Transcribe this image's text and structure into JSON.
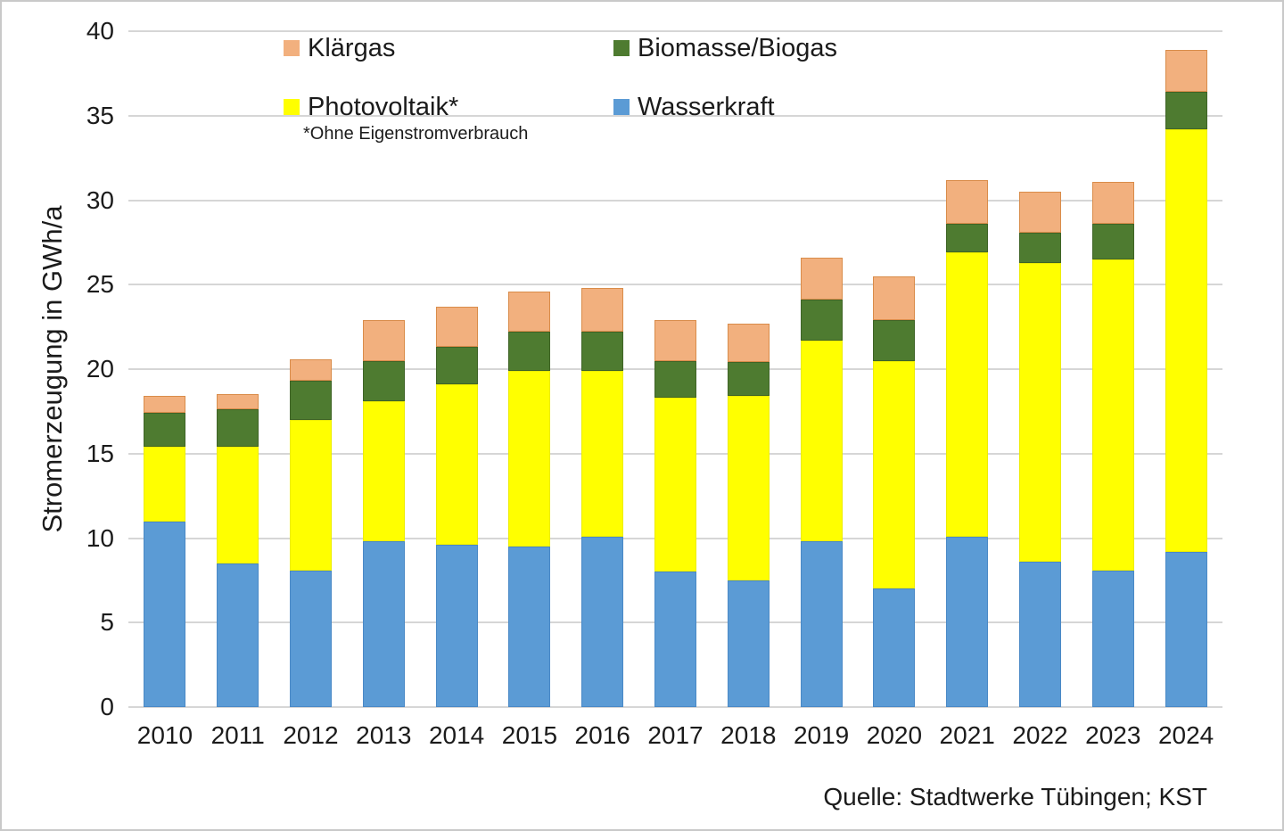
{
  "chart_data": {
    "type": "bar",
    "stacked": true,
    "title": "",
    "categories": [
      "2010",
      "2011",
      "2012",
      "2013",
      "2014",
      "2015",
      "2016",
      "2017",
      "2018",
      "2019",
      "2020",
      "2021",
      "2022",
      "2023",
      "2024"
    ],
    "series": [
      {
        "name": "Wasserkraft",
        "color": "#5B9BD5",
        "border": "#4A89C6",
        "values": [
          11.0,
          8.5,
          8.1,
          9.8,
          9.6,
          9.5,
          10.1,
          8.0,
          7.5,
          9.8,
          7.0,
          10.1,
          8.6,
          8.1,
          9.2
        ]
      },
      {
        "name": "Photovoltaik*",
        "color": "#FFFF00",
        "border": "#EDED00",
        "values": [
          4.4,
          6.9,
          8.9,
          8.3,
          9.5,
          10.4,
          9.8,
          10.3,
          10.9,
          11.9,
          13.5,
          16.8,
          17.7,
          18.4,
          25.0
        ]
      },
      {
        "name": "Biomasse/Biogas",
        "color": "#4E7B30",
        "border": "#3F6426",
        "values": [
          2.0,
          2.2,
          2.3,
          2.4,
          2.2,
          2.3,
          2.3,
          2.2,
          2.0,
          2.4,
          2.4,
          1.7,
          1.8,
          2.1,
          2.2
        ]
      },
      {
        "name": "Klärgas",
        "color": "#F2B07E",
        "border": "#D98C4A",
        "values": [
          1.0,
          0.9,
          1.3,
          2.4,
          2.4,
          2.4,
          2.6,
          2.4,
          2.3,
          2.5,
          2.6,
          2.6,
          2.4,
          2.5,
          2.5
        ]
      }
    ],
    "xlabel": "",
    "ylabel": "Stromerzeugung in GWh/a",
    "ylim": [
      0,
      40
    ],
    "yticks": [
      0,
      5,
      10,
      15,
      20,
      25,
      30,
      35,
      40
    ],
    "grid": true,
    "legend_position": "top-inside"
  },
  "legend": {
    "items": [
      {
        "label": "Klärgas",
        "color": "#F2B07E"
      },
      {
        "label": "Biomasse/Biogas",
        "color": "#4E7B30"
      },
      {
        "label": "Photovoltaik*",
        "color": "#FFFF00",
        "footnote": "*Ohne Eigenstromverbrauch"
      },
      {
        "label": "Wasserkraft",
        "color": "#5B9BD5"
      }
    ]
  },
  "source": "Quelle: Stadtwerke Tübingen; KST"
}
